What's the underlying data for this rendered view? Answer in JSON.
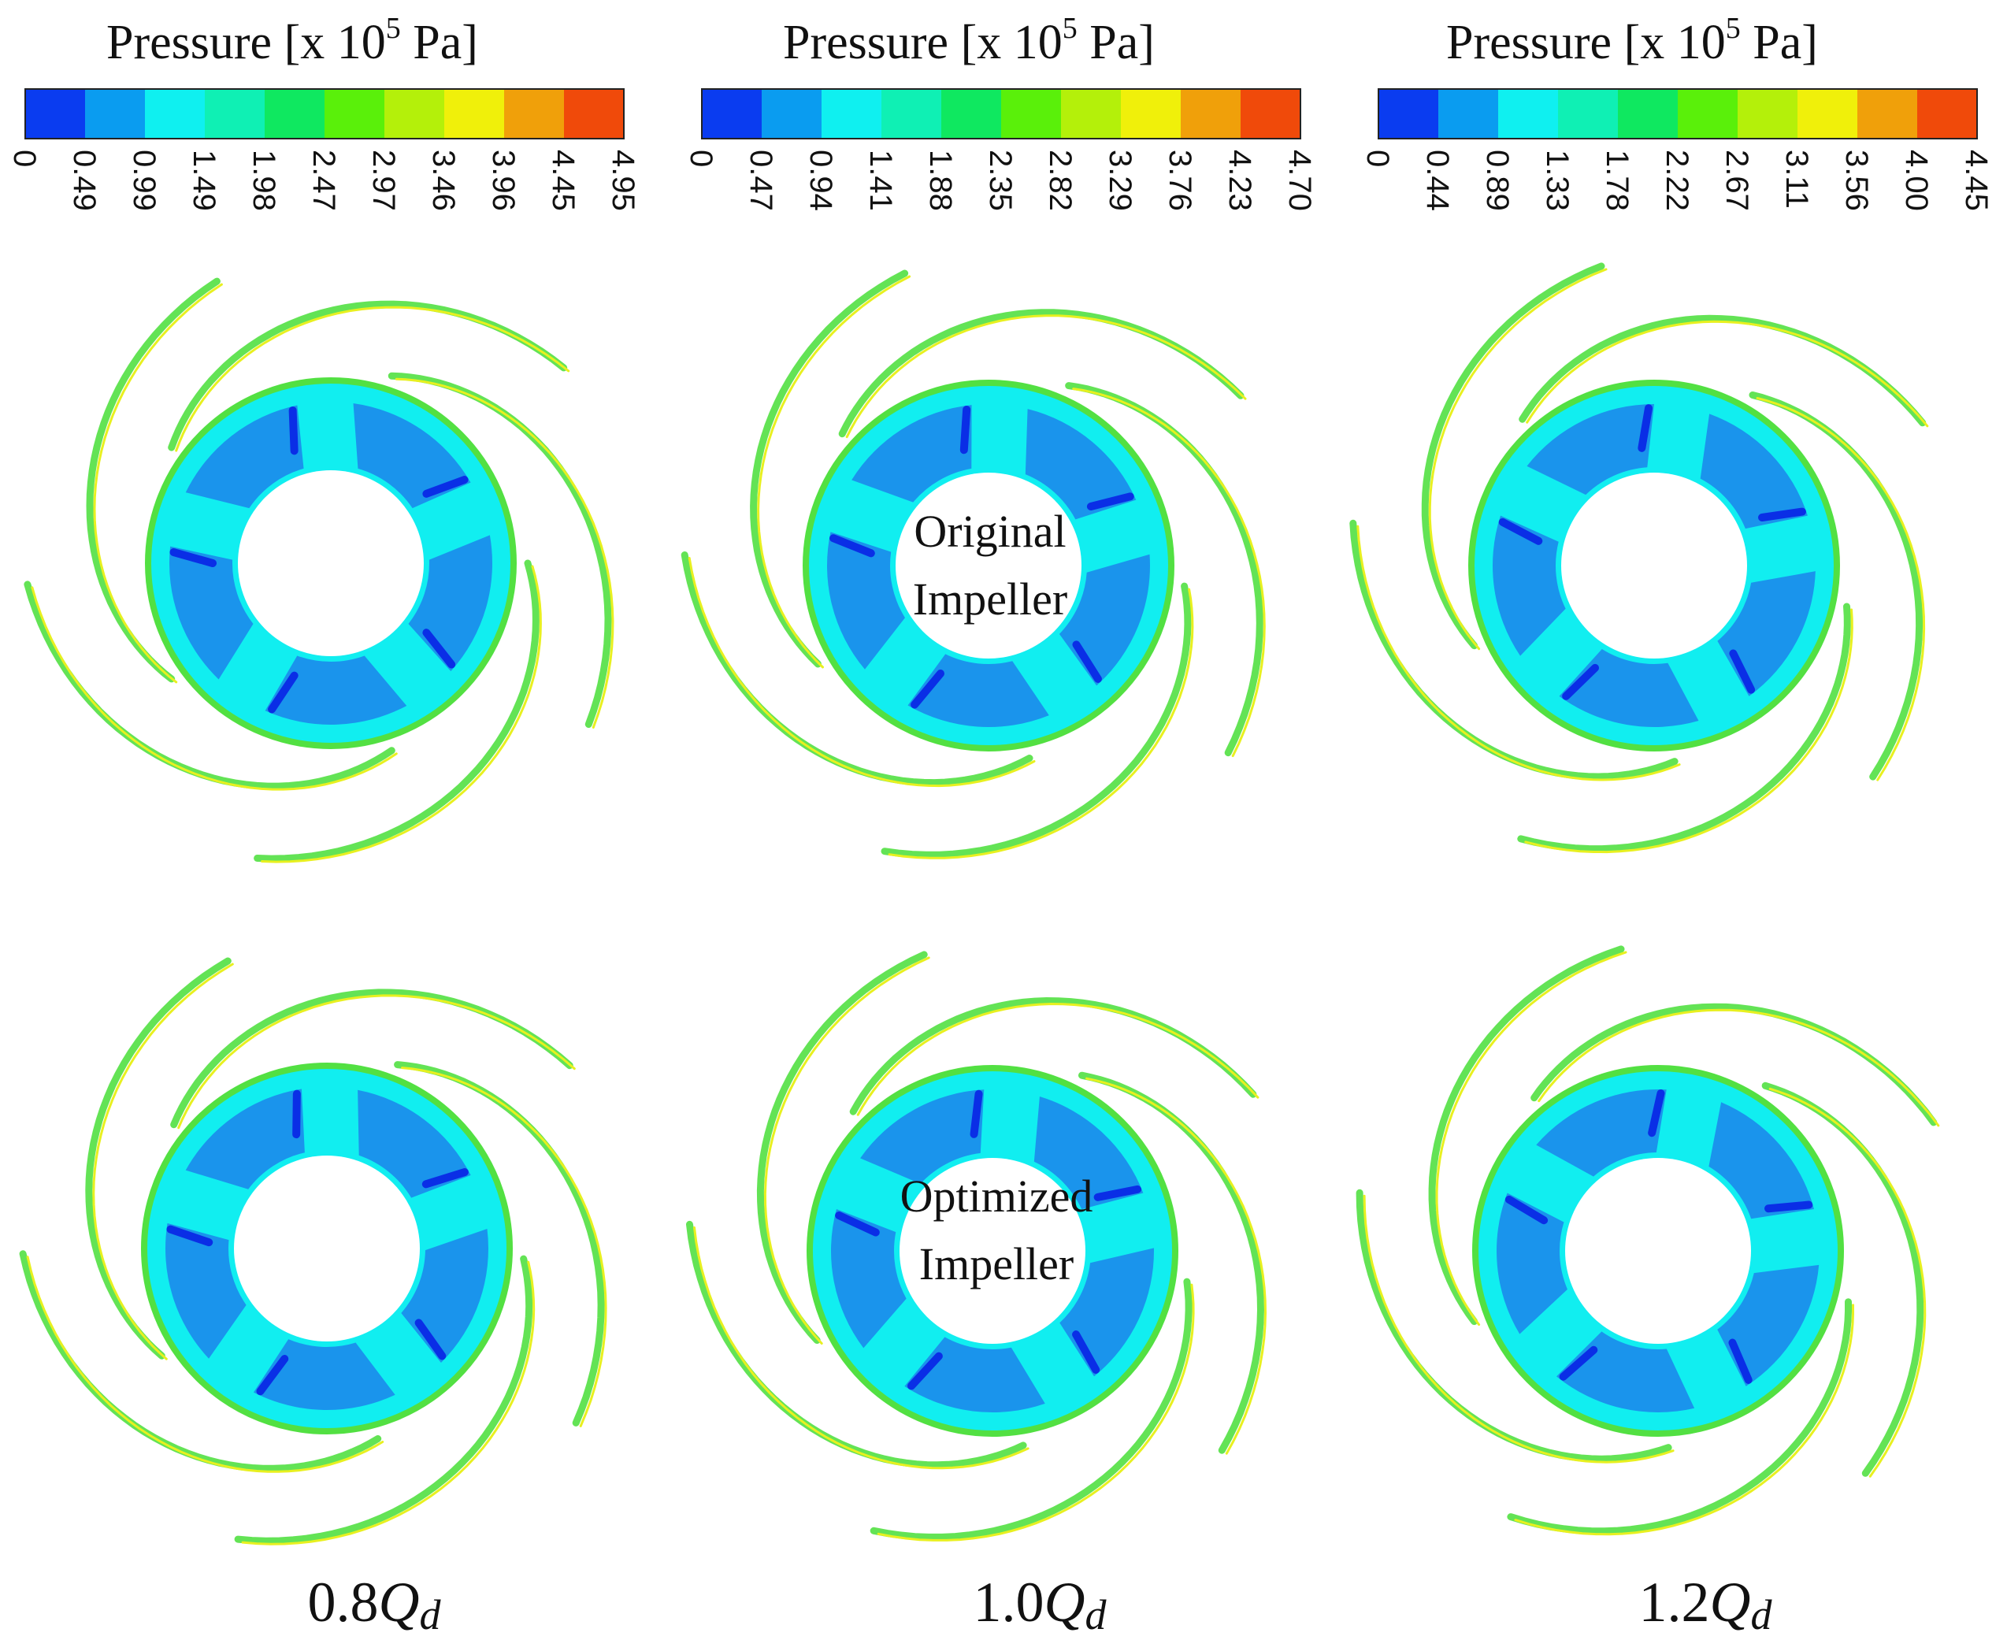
{
  "legends": [
    {
      "title_prefix": "Pressure [x 10",
      "title_exp": "5",
      "title_suffix": " Pa]",
      "ticks": [
        "0",
        "0.49",
        "0.99",
        "1.49",
        "1.98",
        "2.47",
        "2.97",
        "3.46",
        "3.96",
        "4.45",
        "4.95"
      ]
    },
    {
      "title_prefix": "Pressure [x 10",
      "title_exp": "5",
      "title_suffix": " Pa]",
      "ticks": [
        "0",
        "0.47",
        "0.94",
        "1.41",
        "1.88",
        "2.35",
        "2.82",
        "3.29",
        "3.76",
        "4.23",
        "4.70"
      ]
    },
    {
      "title_prefix": "Pressure [x 10",
      "title_exp": "5",
      "title_suffix": " Pa]",
      "ticks": [
        "0",
        "0.44",
        "0.89",
        "1.33",
        "1.78",
        "2.22",
        "2.67",
        "3.11",
        "3.56",
        "4.00",
        "4.45"
      ]
    }
  ],
  "colormap": [
    "#0a3cf0",
    "#0a9cf0",
    "#0ff0f0",
    "#0ff0b4",
    "#0fe860",
    "#5af00a",
    "#b4f00a",
    "#f0f00a",
    "#f0a00a",
    "#f04a0a"
  ],
  "rows": [
    {
      "label_line1": "Original",
      "label_line2": "Impeller"
    },
    {
      "label_line1": "Optimized",
      "label_line2": "Impeller"
    }
  ],
  "conditions": [
    {
      "num": "0.8",
      "q": "Q",
      "sub": "d"
    },
    {
      "num": "1.0",
      "q": "Q",
      "sub": "d"
    },
    {
      "num": "1.2",
      "q": "Q",
      "sub": "d"
    }
  ],
  "contour_colors": {
    "blade_dark": "#0a2ee6",
    "passage_blue": "#1a94ec",
    "ring_cyan": "#11eef0",
    "edge_green": "#52e042",
    "edge_yellow": "#e8f020"
  }
}
